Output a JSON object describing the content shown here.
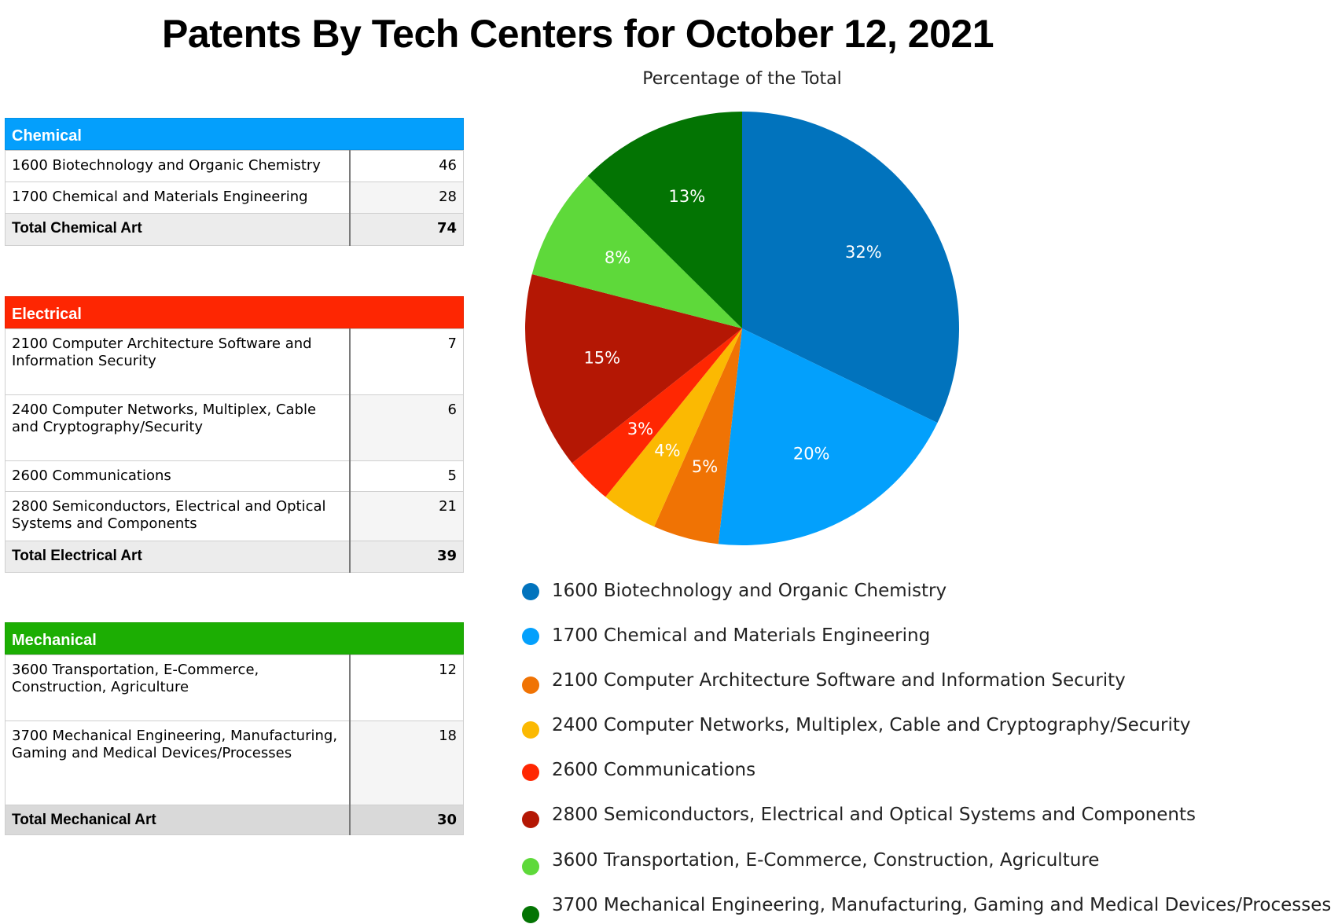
{
  "title": "Patents By Tech Centers for October 12, 2021",
  "groups": [
    {
      "name": "Chemical",
      "color": "#049ffc",
      "rows": [
        {
          "label": "1600 Biotechnology and Organic Chemistry",
          "value": "46"
        },
        {
          "label": "1700 Chemical and Materials Engineering",
          "value": "28"
        }
      ],
      "total_label": "Total Chemical Art",
      "total_value": "74"
    },
    {
      "name": "Electrical",
      "color": "#fe2602",
      "rows": [
        {
          "label": "2100 Computer Architecture Software and Information Security",
          "value": "7"
        },
        {
          "label": "2400 Computer Networks, Multiplex, Cable and Cryptography/Security",
          "value": "6"
        },
        {
          "label": "2600 Communications",
          "value": "5"
        },
        {
          "label": "2800 Semiconductors, Electrical and Optical Systems and Components",
          "value": "21"
        }
      ],
      "total_label": "Total Electrical Art",
      "total_value": "39"
    },
    {
      "name": "Mechanical",
      "color": "#1cae03",
      "rows": [
        {
          "label": "3600 Transportation, E-Commerce, Construction, Agriculture",
          "value": "12"
        },
        {
          "label": "3700 Mechanical Engineering, Manufacturing, Gaming and Medical Devices/Processes",
          "value": "18"
        }
      ],
      "total_label": "Total Mechanical Art",
      "total_value": "30"
    }
  ],
  "chart_data": {
    "type": "pie",
    "title": "Percentage of the Total",
    "categories": [
      "1600 Biotechnology and Organic Chemistry",
      "1700 Chemical and Materials Engineering",
      "2100 Computer Architecture Software and Information Security",
      "2400 Computer Networks, Multiplex, Cable and Cryptography/Security",
      "2600 Communications",
      "2800 Semiconductors, Electrical and Optical Systems and Components",
      "3600 Transportation, E-Commerce, Construction, Agriculture",
      "3700 Mechanical Engineering, Manufacturing, Gaming and Medical Devices/Processes"
    ],
    "values": [
      46,
      28,
      7,
      6,
      5,
      21,
      12,
      18
    ],
    "labels": [
      "32%",
      "20%",
      "5%",
      "4%",
      "3%",
      "15%",
      "8%",
      "13%"
    ],
    "colors": [
      "#0173bd",
      "#03a0fc",
      "#f07304",
      "#fbb902",
      "#ff2702",
      "#b41704",
      "#5ed93a",
      "#037403"
    ],
    "legend_position": "bottom"
  }
}
